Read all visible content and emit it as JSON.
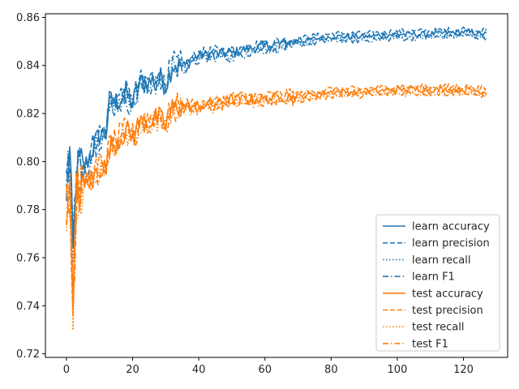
{
  "chart_data": {
    "type": "line",
    "title": "",
    "xlabel": "",
    "ylabel": "",
    "xlim": [
      -6.35,
      133.35
    ],
    "ylim": [
      0.7185,
      0.8615
    ],
    "x_ticks": [
      0,
      20,
      40,
      60,
      80,
      100,
      120
    ],
    "y_ticks": [
      0.72,
      0.74,
      0.76,
      0.78,
      0.8,
      0.82,
      0.84,
      0.86
    ],
    "grid": false,
    "legend_position": "lower-right",
    "colors": {
      "learn": "#1f77b4",
      "test": "#ff7f0e"
    },
    "series_def": [
      {
        "name": "learn accuracy",
        "group": "learn",
        "style": "solid"
      },
      {
        "name": "learn precision",
        "group": "learn",
        "style": "dashed"
      },
      {
        "name": "learn recall",
        "group": "learn",
        "style": "dotted"
      },
      {
        "name": "learn F1",
        "group": "learn",
        "style": "dashdot"
      },
      {
        "name": "test accuracy",
        "group": "test",
        "style": "solid"
      },
      {
        "name": "test precision",
        "group": "test",
        "style": "dashed"
      },
      {
        "name": "test recall",
        "group": "test",
        "style": "dotted"
      },
      {
        "name": "test F1",
        "group": "test",
        "style": "dashdot"
      }
    ],
    "anchors": {
      "learn": [
        [
          0,
          0.789
        ],
        [
          1,
          0.803
        ],
        [
          2,
          0.76
        ],
        [
          3,
          0.794
        ],
        [
          4,
          0.797
        ],
        [
          6,
          0.799
        ],
        [
          8,
          0.806
        ],
        [
          10,
          0.811
        ],
        [
          12,
          0.812
        ],
        [
          13,
          0.825
        ],
        [
          15,
          0.825
        ],
        [
          18,
          0.828
        ],
        [
          20,
          0.824
        ],
        [
          22,
          0.832
        ],
        [
          25,
          0.833
        ],
        [
          28,
          0.835
        ],
        [
          30,
          0.832
        ],
        [
          32,
          0.84
        ],
        [
          36,
          0.84
        ],
        [
          40,
          0.844
        ],
        [
          45,
          0.845
        ],
        [
          50,
          0.845
        ],
        [
          55,
          0.847
        ],
        [
          60,
          0.848
        ],
        [
          65,
          0.849
        ],
        [
          70,
          0.85
        ],
        [
          75,
          0.851
        ],
        [
          80,
          0.852
        ],
        [
          90,
          0.852
        ],
        [
          100,
          0.853
        ],
        [
          110,
          0.853
        ],
        [
          120,
          0.854
        ],
        [
          127,
          0.853
        ]
      ],
      "test": [
        [
          0,
          0.78
        ],
        [
          1,
          0.79
        ],
        [
          2,
          0.735
        ],
        [
          3,
          0.785
        ],
        [
          4,
          0.789
        ],
        [
          6,
          0.791
        ],
        [
          8,
          0.793
        ],
        [
          10,
          0.798
        ],
        [
          12,
          0.797
        ],
        [
          13,
          0.806
        ],
        [
          15,
          0.808
        ],
        [
          18,
          0.813
        ],
        [
          20,
          0.81
        ],
        [
          22,
          0.816
        ],
        [
          25,
          0.817
        ],
        [
          28,
          0.818
        ],
        [
          30,
          0.815
        ],
        [
          32,
          0.822
        ],
        [
          36,
          0.823
        ],
        [
          40,
          0.823
        ],
        [
          45,
          0.824
        ],
        [
          50,
          0.826
        ],
        [
          55,
          0.826
        ],
        [
          60,
          0.826
        ],
        [
          65,
          0.827
        ],
        [
          70,
          0.827
        ],
        [
          75,
          0.828
        ],
        [
          80,
          0.829
        ],
        [
          90,
          0.829
        ],
        [
          100,
          0.83
        ],
        [
          110,
          0.83
        ],
        [
          120,
          0.83
        ],
        [
          127,
          0.829
        ]
      ]
    }
  }
}
